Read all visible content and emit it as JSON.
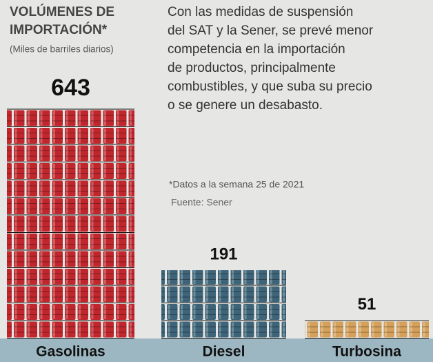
{
  "chart_data": {
    "type": "bar",
    "title": [
      "VOLÚMENES DE",
      "IMPORTACIÓN*"
    ],
    "subtitle": "(Miles de barriles diarios)",
    "description": [
      "Con las medidas de suspensión",
      "del SAT y la Sener, se prevé menor",
      "competencia en la importación",
      "de productos, principalmente",
      "combustibles, y que suba su precio",
      "o se genere un desabasto."
    ],
    "note": "*Datos a la semana 25 de 2021",
    "source": "Fuente: Sener",
    "categories": [
      "Gasolinas",
      "Diesel",
      "Turbosina"
    ],
    "values": [
      643,
      191,
      51
    ],
    "colors": [
      "#c0272d",
      "#3d6478",
      "#d4a05a"
    ]
  }
}
